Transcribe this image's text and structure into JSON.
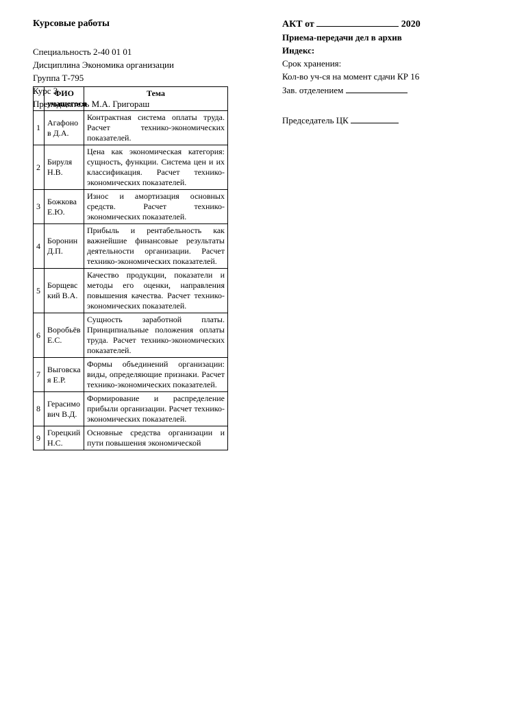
{
  "left": {
    "title": "Курсовые работы",
    "spec_label": "Специальность",
    "spec_value": "2-40 01 01",
    "disc_label": "Дисциплина",
    "disc_value": "Экономика организации",
    "group_label": "Группа",
    "group_value": "Т-795",
    "course_label": "Курс",
    "course_value": "3",
    "teacher_label": "Преподаватель",
    "teacher_value": "М.А. Григораш"
  },
  "right": {
    "akt_prefix": "АКТ от",
    "akt_year": "2020",
    "line2": "Приема-передачи дел в архив",
    "index_label": "Индекс:",
    "storage_label": "Срок хранения:",
    "count_label": "Кол-во уч-ся на момент сдачи КР",
    "count_value": "16",
    "head_label": "Зав. отделением",
    "chair_label": "Председатель ЦК"
  },
  "table": {
    "head_fio": "ФИО учащегося",
    "head_topic": "Тема",
    "rows": [
      {
        "n": "1",
        "fio": "Агафонов Д.А.",
        "topic": "Контрактная система оплаты труда. Расчет технико-экономических показателей."
      },
      {
        "n": "2",
        "fio": "Бируля Н.В.",
        "topic": "Цена как экономическая категория: сущность, функции. Система цен и их классификация. Расчет технико-экономических показателей."
      },
      {
        "n": "3",
        "fio": "Божкова Е.Ю.",
        "topic": "Износ и амортизация основных средств. Расчет технико-экономических показателей."
      },
      {
        "n": "4",
        "fio": "Боронин Д.П.",
        "topic": "Прибыль и рентабельность как важнейшие финансовые результаты деятельности организации. Расчет технико-экономических показателей."
      },
      {
        "n": "5",
        "fio": "Борщевский В.А.",
        "topic": "Качество продукции, показатели и методы его оценки, направления повышения качества. Расчет технико-экономических показателей."
      },
      {
        "n": "6",
        "fio": "Воробьёв Е.С.",
        "topic": "Сущность заработной платы. Принципиальные положения оплаты труда. Расчет технико-экономических показателей."
      },
      {
        "n": "7",
        "fio": "Выговская Е.Р.",
        "topic": "Формы объединений организации: виды, определяющие признаки. Расчет технико-экономических показателей."
      },
      {
        "n": "8",
        "fio": "Герасимович В.Д.",
        "topic": "Формирование и распределение прибыли организации. Расчет технико-экономических показателей."
      },
      {
        "n": "9",
        "fio": "Горецкий Н.С.",
        "topic": "Основные средства организации и пути повышения экономической"
      }
    ]
  }
}
